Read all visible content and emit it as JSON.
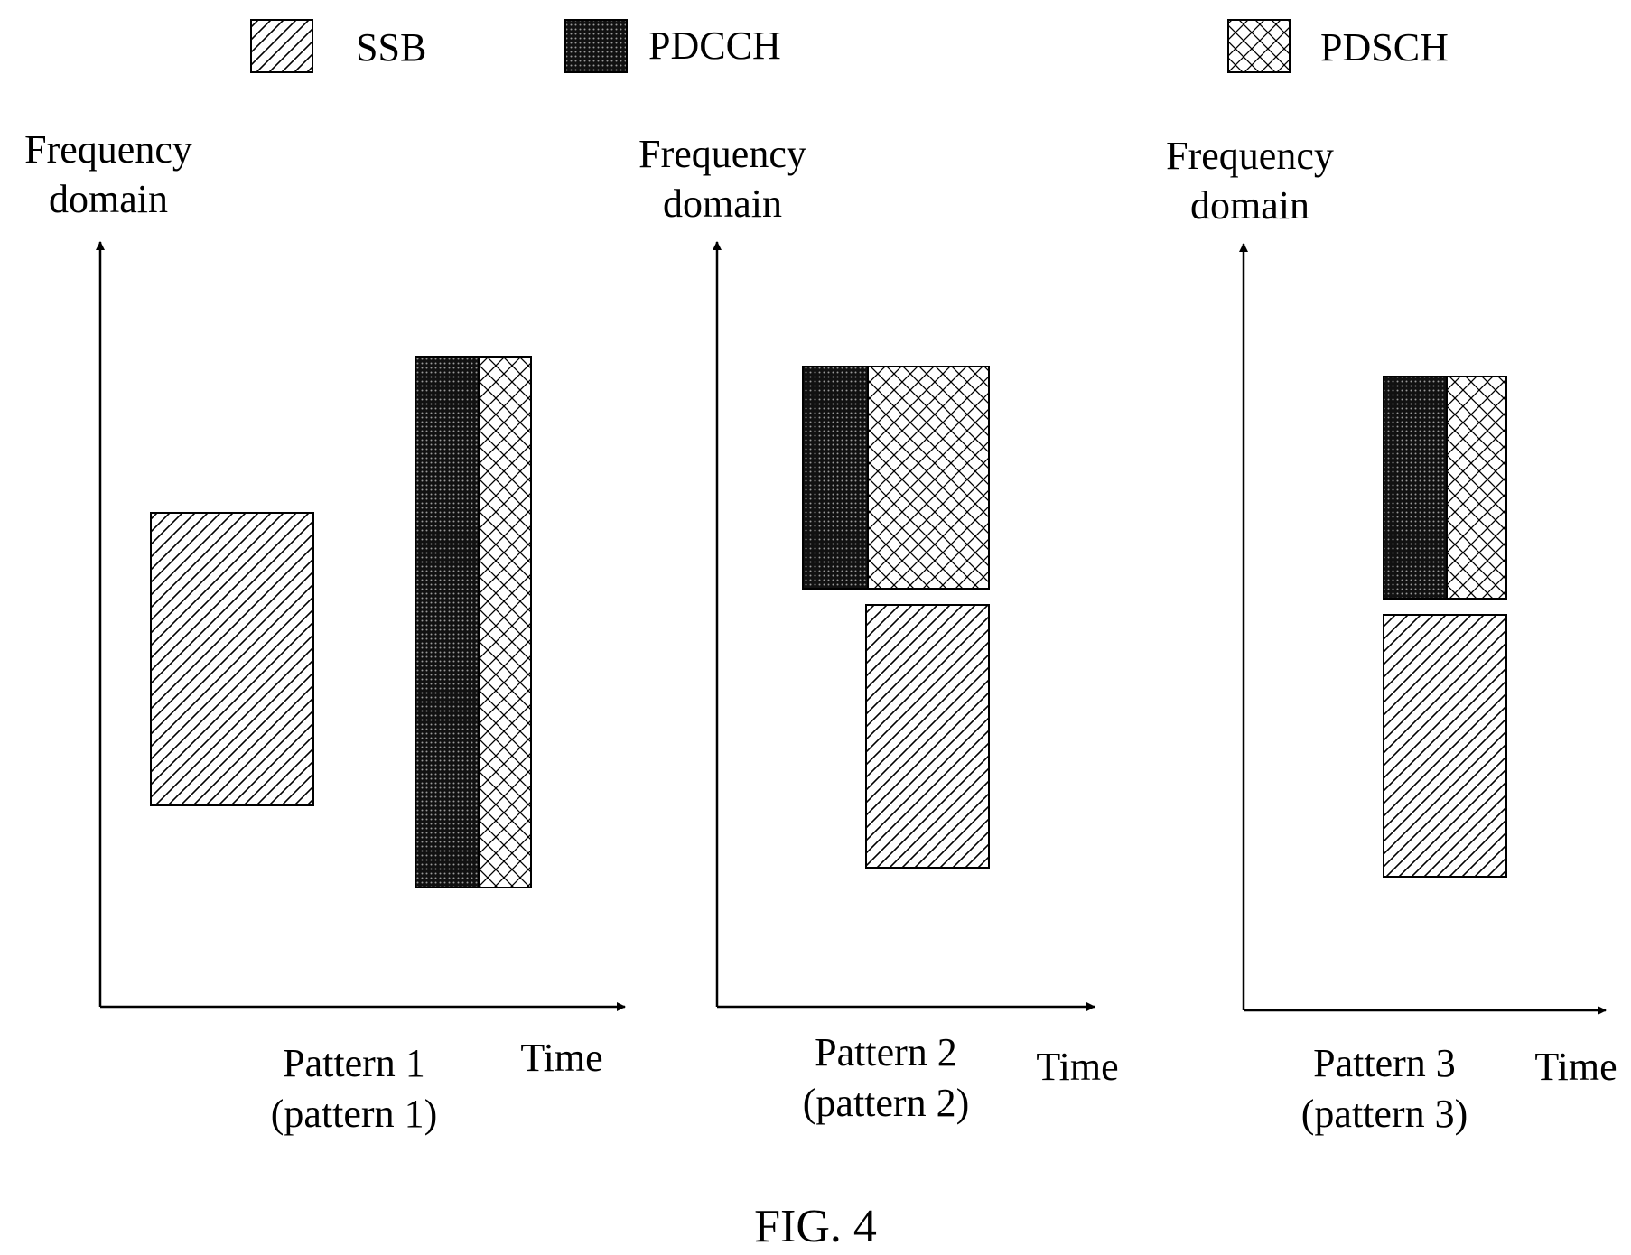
{
  "legend": [
    {
      "key": "ssb",
      "label": "SSB",
      "pattern": "diagonal-hatch"
    },
    {
      "key": "pdcch",
      "label": "PDCCH",
      "pattern": "dense-dots"
    },
    {
      "key": "pdsch",
      "label": "PDSCH",
      "pattern": "crosshatch"
    }
  ],
  "axes": {
    "y_label_line1": "Frequency",
    "y_label_line2": "domain",
    "x_label": "Time"
  },
  "patterns": [
    {
      "name_line1": "Pattern 1",
      "name_line2": "(pattern 1)"
    },
    {
      "name_line1": "Pattern 2",
      "name_line2": "(pattern 2)"
    },
    {
      "name_line1": "Pattern 3",
      "name_line2": "(pattern 3)"
    }
  ],
  "caption": "FIG. 4",
  "colors": {
    "ink": "#000000",
    "paper": "#ffffff"
  }
}
